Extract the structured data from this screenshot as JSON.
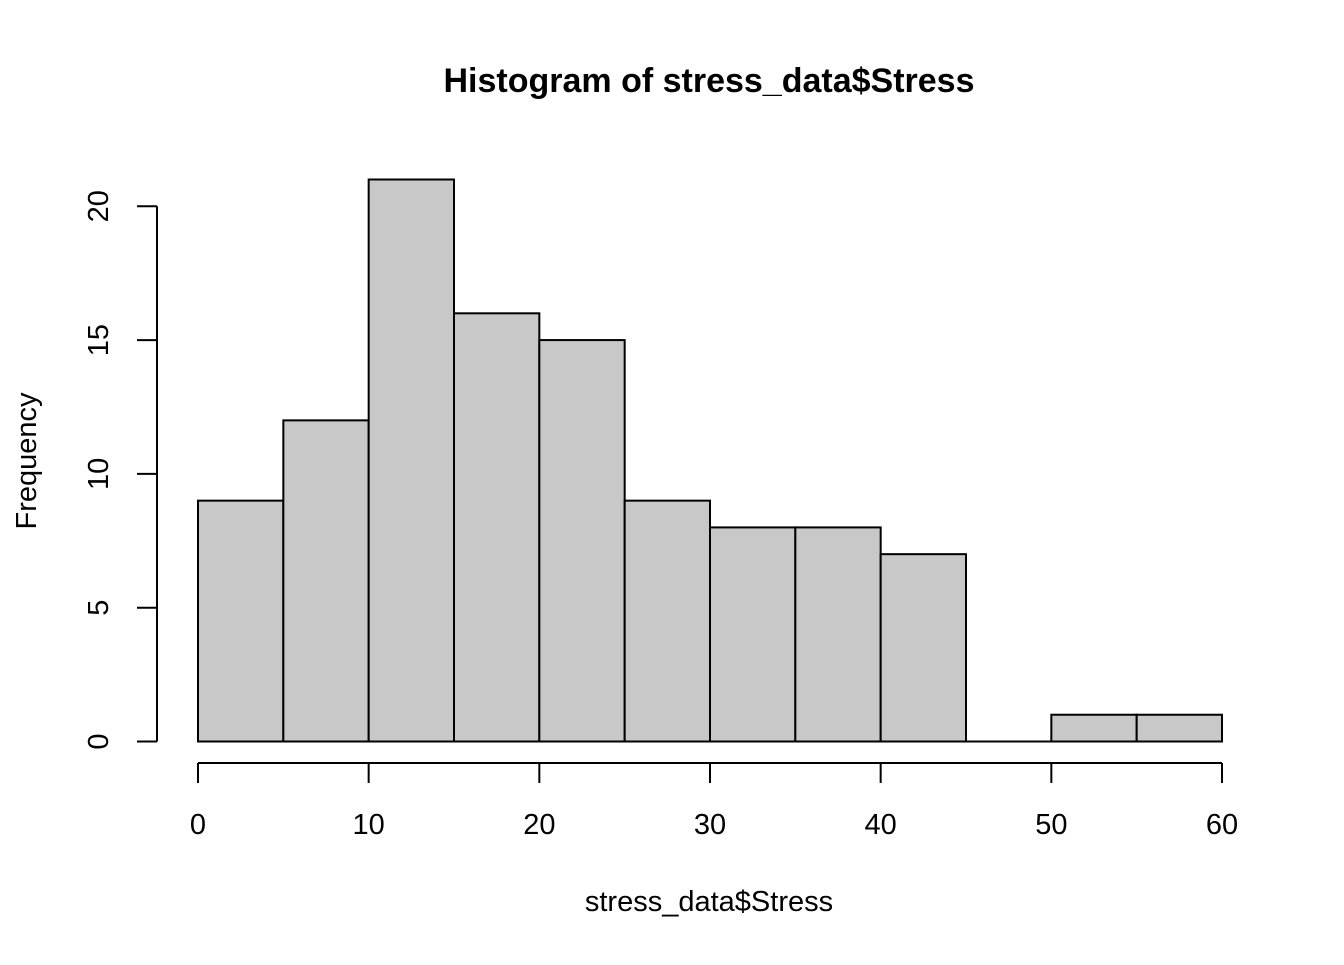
{
  "chart_data": {
    "type": "bar",
    "subtype": "histogram",
    "title": "Histogram of stress_data$Stress",
    "xlabel": "stress_data$Stress",
    "ylabel": "Frequency",
    "bins": [
      {
        "start": 0,
        "end": 5,
        "count": 9
      },
      {
        "start": 5,
        "end": 10,
        "count": 12
      },
      {
        "start": 10,
        "end": 15,
        "count": 21
      },
      {
        "start": 15,
        "end": 20,
        "count": 16
      },
      {
        "start": 20,
        "end": 25,
        "count": 15
      },
      {
        "start": 25,
        "end": 30,
        "count": 9
      },
      {
        "start": 30,
        "end": 35,
        "count": 8
      },
      {
        "start": 35,
        "end": 40,
        "count": 8
      },
      {
        "start": 40,
        "end": 45,
        "count": 7
      },
      {
        "start": 45,
        "end": 50,
        "count": 0
      },
      {
        "start": 50,
        "end": 55,
        "count": 1
      },
      {
        "start": 55,
        "end": 60,
        "count": 1
      }
    ],
    "x_ticks": [
      0,
      10,
      20,
      30,
      40,
      50,
      60
    ],
    "y_ticks": [
      0,
      5,
      10,
      15,
      20
    ],
    "xlim": [
      0,
      60
    ],
    "ylim": [
      0,
      21
    ],
    "grid": false,
    "legend": "none",
    "colors": {
      "bar_fill": "#c8c8c8",
      "bar_stroke": "#000000",
      "background": "#ffffff"
    }
  }
}
